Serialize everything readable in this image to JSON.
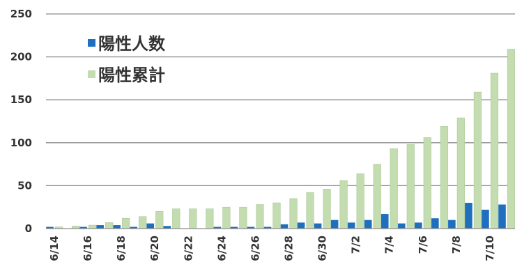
{
  "chart_data": {
    "type": "bar",
    "title": "",
    "xlabel": "",
    "ylabel": "",
    "ylim": [
      0,
      250
    ],
    "yticks": [
      0,
      50,
      100,
      150,
      200,
      250
    ],
    "grid": true,
    "legend_position": "top-left",
    "categories": [
      "6/14",
      "6/15",
      "6/16",
      "6/17",
      "6/18",
      "6/19",
      "6/20",
      "6/21",
      "6/22",
      "6/23",
      "6/24",
      "6/25",
      "6/26",
      "6/27",
      "6/28",
      "6/29",
      "6/30",
      "7/1",
      "7/2",
      "7/3",
      "7/4",
      "7/5",
      "7/6",
      "7/7",
      "7/8",
      "7/9",
      "7/10",
      "7/11"
    ],
    "tick_labels_shown": [
      "6/14",
      "6/16",
      "6/18",
      "6/20",
      "6/22",
      "6/24",
      "6/26",
      "6/28",
      "6/30",
      "7/2",
      "7/4",
      "7/6",
      "7/8",
      "7/10"
    ],
    "series": [
      {
        "name": "陽性人数",
        "color": "#1f6fbf",
        "values": [
          2,
          0,
          2,
          4,
          4,
          2,
          6,
          3,
          0,
          0,
          2,
          2,
          2,
          2,
          5,
          7,
          6,
          10,
          7,
          10,
          17,
          6,
          7,
          12,
          10,
          30,
          22,
          28
        ]
      },
      {
        "name": "陽性累計",
        "color": "#c3dcb0",
        "values": [
          2,
          3,
          4,
          7,
          12,
          14,
          20,
          23,
          23,
          23,
          25,
          25,
          28,
          30,
          35,
          42,
          46,
          56,
          64,
          75,
          93,
          98,
          106,
          119,
          129,
          159,
          181,
          209
        ]
      }
    ]
  }
}
